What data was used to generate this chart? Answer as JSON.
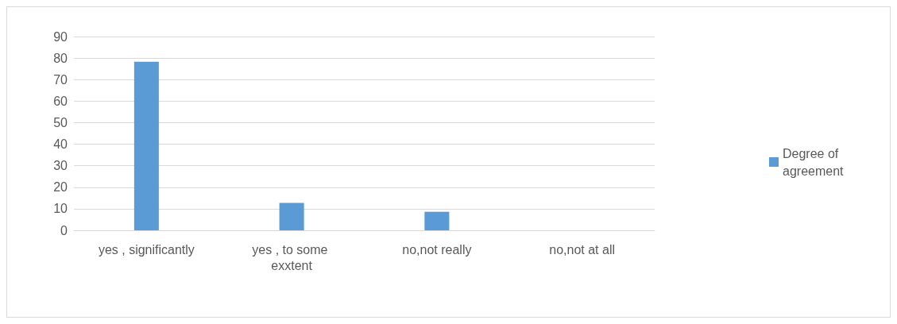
{
  "chart_data": {
    "type": "bar",
    "categories": [
      "yes , significantly",
      "yes , to some exxtent",
      "no,not really",
      "no,not at all"
    ],
    "series": [
      {
        "name": "Degree of agreement",
        "color": "#5b9bd5",
        "values": [
          78.3,
          12.7,
          8.6,
          0
        ]
      }
    ],
    "ylim": [
      0,
      90
    ],
    "yticks": [
      0,
      10,
      20,
      30,
      40,
      50,
      60,
      70,
      80,
      90
    ],
    "grid": "y",
    "legend": "right"
  }
}
